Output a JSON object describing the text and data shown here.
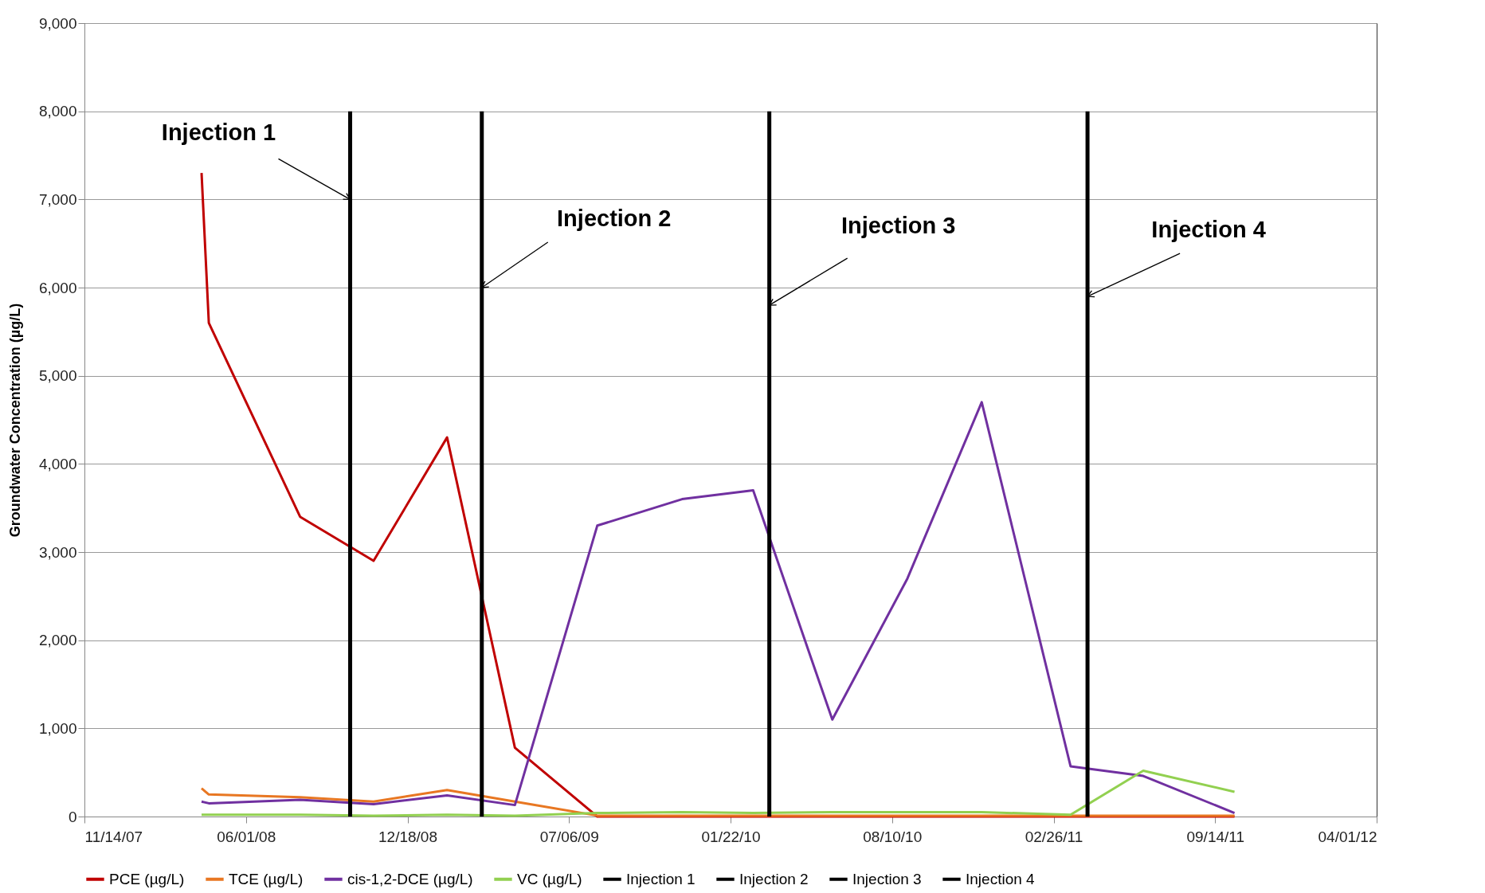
{
  "chart_data": {
    "type": "line",
    "ylabel": "Groundwater Concentration (µg/L)",
    "x": [
      "2008-04-07",
      "2008-04-16",
      "2008-08-07",
      "2008-11-06",
      "2009-02-05",
      "2009-04-30",
      "2009-08-10",
      "2009-11-23",
      "2010-02-19",
      "2010-05-28",
      "2010-08-29",
      "2010-11-29",
      "2011-03-19",
      "2011-06-17",
      "2011-10-08"
    ],
    "series": [
      {
        "name": "PCE (µg/L)",
        "color": "#c00000",
        "values": [
          7300,
          5600,
          3400,
          2900,
          4300,
          780,
          0,
          0,
          0,
          0,
          0,
          0,
          0,
          0,
          0
        ]
      },
      {
        "name": "TCE (µg/L)",
        "color": "#e87722",
        "values": [
          320,
          250,
          220,
          170,
          300,
          170,
          10,
          10,
          10,
          10,
          10,
          10,
          10,
          10,
          10
        ]
      },
      {
        "name": "cis-1,2-DCE (µg/L)",
        "color": "#7030a0",
        "values": [
          170,
          150,
          190,
          140,
          240,
          130,
          3300,
          3600,
          3700,
          1100,
          2700,
          4700,
          570,
          460,
          40
        ]
      },
      {
        "name": "VC (µg/L)",
        "color": "#92d050",
        "values": [
          20,
          20,
          20,
          10,
          20,
          10,
          40,
          50,
          40,
          50,
          50,
          50,
          20,
          520,
          280
        ]
      },
      {
        "name": "Injection 1",
        "color": "#000000",
        "x": [
          "2008-10-08",
          "2008-10-08"
        ],
        "values": [
          0,
          8000
        ]
      },
      {
        "name": "Injection 2",
        "color": "#000000",
        "x": [
          "2009-03-20",
          "2009-03-20"
        ],
        "values": [
          0,
          8000
        ]
      },
      {
        "name": "Injection 3",
        "color": "#000000",
        "x": [
          "2010-03-11",
          "2010-03-11"
        ],
        "values": [
          0,
          8000
        ]
      },
      {
        "name": "Injection 4",
        "color": "#000000",
        "x": [
          "2011-04-09",
          "2011-04-09"
        ],
        "values": [
          0,
          8000
        ]
      }
    ],
    "annotations": [
      {
        "text": "Injection 1",
        "x": "2008-10-08",
        "y": 7000
      },
      {
        "text": "Injection 2",
        "x": "2009-03-20",
        "y": 6000
      },
      {
        "text": "Injection 3",
        "x": "2010-03-11",
        "y": 5800
      },
      {
        "text": "Injection 4",
        "x": "2011-04-09",
        "y": 5900
      }
    ],
    "xlim": [
      "2007-11-14",
      "2012-04-01"
    ],
    "xticks": [
      {
        "value": "2007-11-14",
        "label": "11/14/07"
      },
      {
        "value": "2008-06-01",
        "label": "06/01/08"
      },
      {
        "value": "2008-12-18",
        "label": "12/18/08"
      },
      {
        "value": "2009-07-06",
        "label": "07/06/09"
      },
      {
        "value": "2010-01-22",
        "label": "01/22/10"
      },
      {
        "value": "2010-08-10",
        "label": "08/10/10"
      },
      {
        "value": "2011-02-26",
        "label": "02/26/11"
      },
      {
        "value": "2011-09-14",
        "label": "09/14/11"
      },
      {
        "value": "2012-04-01",
        "label": "04/01/12"
      }
    ],
    "ylim": [
      0,
      9000
    ],
    "yticks": [
      0,
      {
        "value": 1000,
        "label": "1,000"
      },
      {
        "value": 2000,
        "label": "2,000"
      },
      {
        "value": 3000,
        "label": "3,000"
      },
      {
        "value": 4000,
        "label": "4,000"
      },
      {
        "value": 5000,
        "label": "5,000"
      },
      {
        "value": 6000,
        "label": "6,000"
      },
      {
        "value": 7000,
        "label": "7,000"
      },
      {
        "value": 8000,
        "label": "8,000"
      },
      {
        "value": 9000,
        "label": "9,000"
      }
    ],
    "grid": "y",
    "legend": "bottom",
    "marker": "none",
    "line_style": "solid"
  }
}
